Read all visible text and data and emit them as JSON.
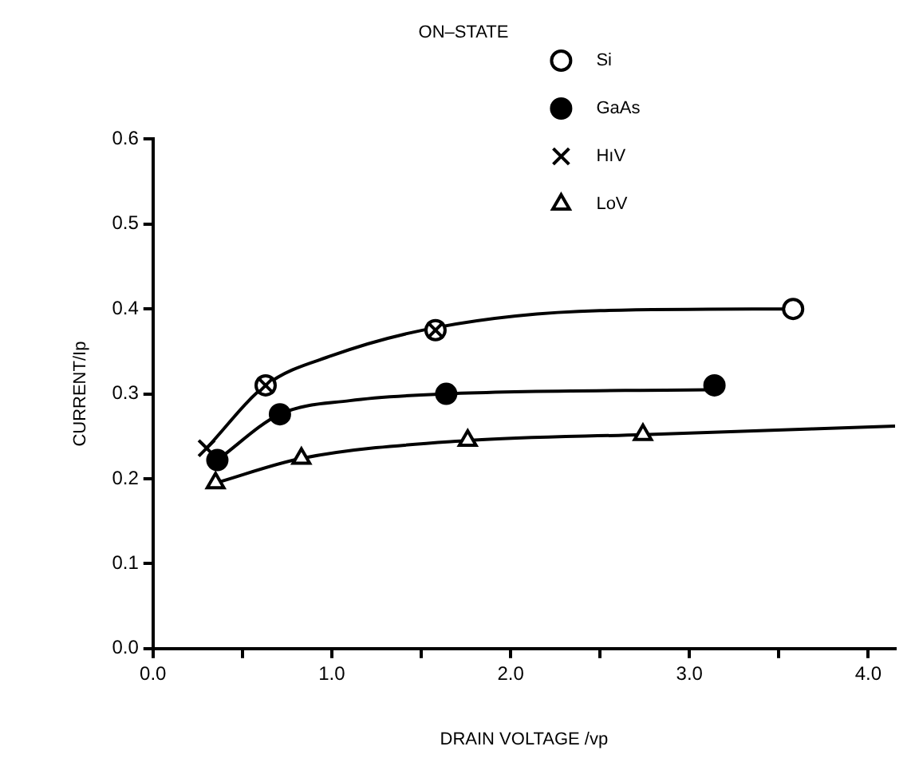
{
  "chart_data": {
    "type": "scatter",
    "title": "ON–STATE",
    "xlabel": "DRAIN VOLTAGE /vp",
    "ylabel": "CURRENT/Ip",
    "xlim": [
      0,
      4.15
    ],
    "ylim": [
      0,
      0.6
    ],
    "xticks": [
      {
        "value": 0,
        "label": "0.0"
      },
      {
        "value": 0.5,
        "label": null
      },
      {
        "value": 1,
        "label": "1.0"
      },
      {
        "value": 1.5,
        "label": null
      },
      {
        "value": 2,
        "label": "2.0"
      },
      {
        "value": 2.5,
        "label": null
      },
      {
        "value": 3,
        "label": "3.0"
      },
      {
        "value": 3.5,
        "label": null
      },
      {
        "value": 4,
        "label": "4.0"
      }
    ],
    "yticks": [
      {
        "value": 0,
        "label": "0.0"
      },
      {
        "value": 0.1,
        "label": "0.1"
      },
      {
        "value": 0.2,
        "label": "0.2"
      },
      {
        "value": 0.3,
        "label": "0.3"
      },
      {
        "value": 0.4,
        "label": "0.4"
      },
      {
        "value": 0.5,
        "label": "0.5"
      },
      {
        "value": 0.6,
        "label": "0.6"
      }
    ],
    "grid": false,
    "legend": "top right",
    "series": [
      {
        "name": "Si",
        "marker": "circle",
        "color": "#ffffff",
        "x": [
          0.63,
          1.58,
          3.58
        ],
        "values": [
          0.31,
          0.375,
          0.4
        ]
      },
      {
        "name": "GaAs",
        "marker": "circle",
        "color": "#000000",
        "x": [
          0.36,
          0.71,
          1.64,
          3.14
        ],
        "values": [
          0.222,
          0.276,
          0.3,
          0.31
        ]
      },
      {
        "name": "HıV",
        "marker": "cross",
        "color": "#000000",
        "x": [
          0.3,
          0.63,
          1.58
        ],
        "values": [
          0.236,
          0.31,
          0.375
        ]
      },
      {
        "name": "LoV",
        "marker": "triangle",
        "color": "#ffffff",
        "x": [
          0.35,
          0.83,
          1.76,
          2.74
        ],
        "values": [
          0.195,
          0.224,
          0.245,
          0.252
        ]
      },
      {
        "type": "line",
        "marker": "none",
        "color": "#000000",
        "x": [
          0.3,
          0.63,
          1.0,
          1.58,
          2.5,
          3.58
        ],
        "values": [
          0.236,
          0.31,
          0.345,
          0.378,
          0.398,
          0.4
        ]
      },
      {
        "type": "line",
        "marker": "none",
        "color": "#000000",
        "x": [
          0.36,
          0.71,
          1.1,
          1.64,
          3.14
        ],
        "values": [
          0.222,
          0.276,
          0.292,
          0.3,
          0.305
        ]
      },
      {
        "type": "line",
        "marker": "none",
        "color": "#000000",
        "x": [
          0.35,
          0.83,
          1.76,
          2.74,
          4.15
        ],
        "values": [
          0.195,
          0.224,
          0.245,
          0.252,
          0.262
        ]
      }
    ]
  }
}
